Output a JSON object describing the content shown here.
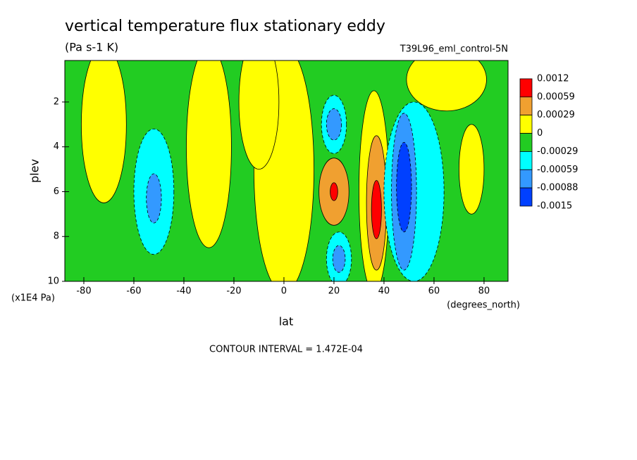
{
  "chart_data": {
    "type": "contour",
    "title": "vertical temperature flux stationary eddy",
    "subtitle": "(Pa s-1 K)",
    "dataset": "T39L96_eml_control-5N",
    "xlabel": "lat",
    "ylabel": "plev",
    "xunits": "(degrees_north)",
    "yunits": "(x1E4 Pa)",
    "note": "CONTOUR INTERVAL = 1.472E-04",
    "xlim": [
      -87.6,
      89.6
    ],
    "ylim": [
      10,
      0.15
    ],
    "xticks": [
      -80,
      -60,
      -40,
      -20,
      0,
      20,
      40,
      60,
      80
    ],
    "yticks": [
      2,
      4,
      6,
      8,
      10
    ],
    "levels": [
      0.0012,
      0.00059,
      0.00029,
      0,
      -0.00029,
      -0.00059,
      -0.00088,
      -0.0015
    ],
    "colors": [
      "#ff0000",
      "#f0a030",
      "#ffff00",
      "#22cc22",
      "#00ffff",
      "#3399ff",
      "#0040ff"
    ],
    "features": [
      {
        "lat": 0,
        "plev": 5,
        "dlat": 12,
        "dplev": 5.5,
        "value": 0.0001
      },
      {
        "lat": -72,
        "plev": 3,
        "dlat": 9,
        "dplev": 3.5,
        "value": 0.0001
      },
      {
        "lat": -30,
        "plev": 4,
        "dlat": 9,
        "dplev": 4.5,
        "value": 0.0001
      },
      {
        "lat": -10,
        "plev": 2,
        "dlat": 8,
        "dplev": 3,
        "value": 0.0001
      },
      {
        "lat": 65,
        "plev": 1,
        "dlat": 16,
        "dplev": 1.4,
        "value": 0.0001
      },
      {
        "lat": 75,
        "plev": 5,
        "dlat": 5,
        "dplev": 2,
        "value": 0.0001
      },
      {
        "lat": 36,
        "plev": 6,
        "dlat": 6,
        "dplev": 4.5,
        "value": 0.0001
      },
      {
        "lat": -52,
        "plev": 6,
        "dlat": 8,
        "dplev": 2.8,
        "value": -0.0004
      },
      {
        "lat": -52,
        "plev": 6.3,
        "dlat": 3,
        "dplev": 1.1,
        "value": -0.0007
      },
      {
        "lat": 20,
        "plev": 3,
        "dlat": 5,
        "dplev": 1.3,
        "value": -0.0004
      },
      {
        "lat": 20,
        "plev": 3,
        "dlat": 3,
        "dplev": 0.7,
        "value": -0.0007
      },
      {
        "lat": 20,
        "plev": 6,
        "dlat": 6,
        "dplev": 1.5,
        "value": 0.0004
      },
      {
        "lat": 20,
        "plev": 6,
        "dlat": 1.5,
        "dplev": 0.4,
        "value": 0.0008
      },
      {
        "lat": 22,
        "plev": 9,
        "dlat": 5,
        "dplev": 1.2,
        "value": -0.0004
      },
      {
        "lat": 22,
        "plev": 9,
        "dlat": 2.5,
        "dplev": 0.6,
        "value": -0.0007
      },
      {
        "lat": 37,
        "plev": 6.5,
        "dlat": 4,
        "dplev": 3,
        "value": 0.0004
      },
      {
        "lat": 37,
        "plev": 6.8,
        "dlat": 2,
        "dplev": 1.3,
        "value": 0.0008
      },
      {
        "lat": 52,
        "plev": 6,
        "dlat": 12,
        "dplev": 4,
        "value": -0.0004
      },
      {
        "lat": 48,
        "plev": 6,
        "dlat": 5,
        "dplev": 3.5,
        "value": -0.0007
      },
      {
        "lat": 48,
        "plev": 5.8,
        "dlat": 3,
        "dplev": 2,
        "value": -0.001
      }
    ]
  }
}
